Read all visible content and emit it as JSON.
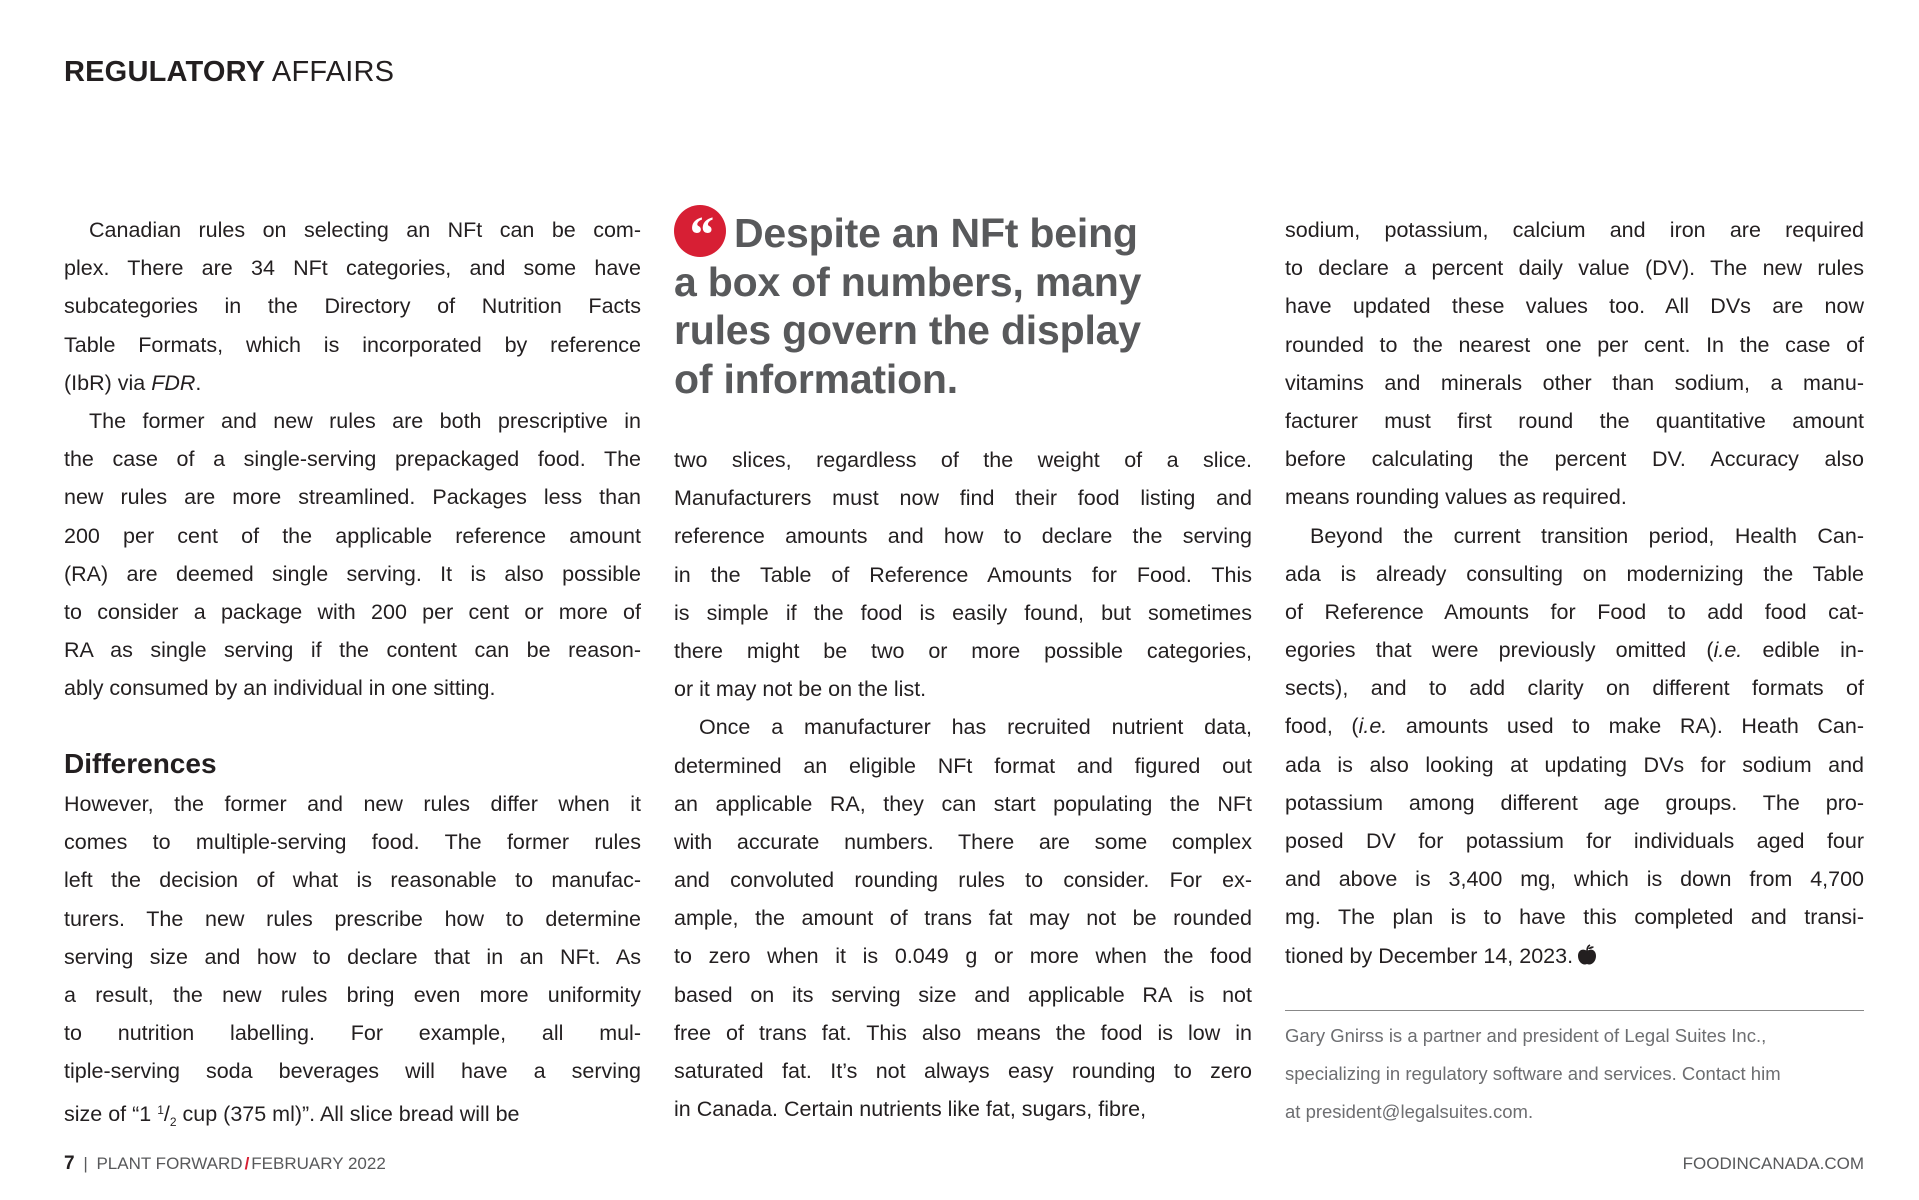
{
  "header": {
    "section_bold": "REGULATORY",
    "section_regular": "AFFAIRS"
  },
  "pull_quote": {
    "icon": "quote-mark-icon",
    "accent_color": "#d71f34",
    "lines": [
      "Despite an NFt being",
      "a box of numbers, many",
      "rules govern the display",
      "of information."
    ]
  },
  "left_column": {
    "block1": [
      [
        "Canadian rules on selecting an NFt can be com-",
        "plex. There are 34 NFt categories, and some have",
        "subcategories in the Directory of Nutrition Facts",
        "Table Formats, which is incorporated by reference",
        [
          {
            "t": "(IbR) via "
          },
          {
            "t": "FDR",
            "s": "i"
          },
          {
            "t": "."
          }
        ]
      ],
      [
        "The former and new rules are both prescriptive in",
        "the case of a single-serving prepackaged food. The",
        "new rules are more streamlined. Packages less than",
        "200 per cent of the applicable reference amount",
        "(RA) are deemed single serving. It is also possible",
        "to consider a package with 200 per cent or more of",
        "RA as single serving if the content can be reason-",
        "ably consumed by an individual in one sitting."
      ]
    ],
    "heading": "Differences",
    "block2": [
      [
        "However, the former and new rules differ when it",
        "comes to multiple-serving food. The former rules",
        "left the decision of what is reasonable to manufac-",
        "turers. The new rules prescribe how to determine",
        "serving size and how to declare that in an NFt. As",
        "a result, the new rules bring even more uniformity",
        "to nutrition labelling. For example, all mul-",
        "tiple-serving soda beverages will have a serving",
        [
          {
            "t": "size of “1 "
          },
          {
            "t": "1",
            "s": "sup"
          },
          {
            "t": "/"
          },
          {
            "t": "2",
            "s": "sub"
          },
          {
            "t": " cup (375 ml)”. All slice bread will be"
          }
        ]
      ]
    ]
  },
  "middle_column": [
    [
      "two slices, regardless of the weight of a slice.",
      "Manufacturers must now find their food listing and",
      "reference amounts and how to declare the serving",
      "in the Table of Reference Amounts for Food. This",
      "is simple if the food is easily found, but sometimes",
      "there might be two or more possible categories,",
      "or it may not be on the list."
    ],
    [
      "Once a manufacturer has recruited nutrient data,",
      "determined an eligible NFt format and figured out",
      "an applicable RA, they can start populating the NFt",
      "with accurate numbers. There are some complex",
      "and convoluted rounding rules to consider. For ex-",
      "ample, the amount of trans fat may not be rounded",
      "to zero when it is 0.049 g or more when the food",
      "based on its serving size and applicable RA is not",
      "free of trans fat. This also means the food is low in",
      "saturated fat. It’s not always easy rounding to zero",
      "in Canada. Certain nutrients like fat, sugars, fibre,"
    ]
  ],
  "right_column": [
    [
      "sodium, potassium, calcium and iron are required",
      "to declare a percent daily value (DV). The new rules",
      "have updated these values too. All DVs are now",
      "rounded to the nearest one per cent. In the case of",
      "vitamins and minerals other than sodium, a manu-",
      "facturer must first round the quantitative amount",
      "before calculating the percent DV. Accuracy also",
      "means rounding values as required."
    ],
    [
      "Beyond the current transition period, Health Can-",
      "ada is already consulting on modernizing the Table",
      "of Reference Amounts for Food to add food cat-",
      [
        {
          "t": "egories that were previously omitted ("
        },
        {
          "t": "i.e.",
          "s": "i"
        },
        {
          "t": " edible in-"
        }
      ],
      "sects), and to add clarity on different formats of",
      [
        {
          "t": "food, ("
        },
        {
          "t": "i.e.",
          "s": "i"
        },
        {
          "t": " amounts used to make RA). Heath Can-"
        }
      ],
      "ada is also looking at updating DVs for sodium and",
      "potassium among different age groups. The pro-",
      "posed DV for potassium for individuals aged four",
      "and above is 3,400 mg, which is down from 4,700",
      "mg. The plan is to have this completed and transi-",
      "tioned by December 14, 2023."
    ]
  ],
  "end_mark_icon": "apple-icon",
  "author_note": [
    "Gary Gnirss is a partner and president of Legal Suites Inc.,",
    "specializing in regulatory software and services. Contact him",
    "at president@legalsuites.com."
  ],
  "footer": {
    "page_number": "7",
    "separator": "|",
    "magazine": "PLANT FORWARD",
    "slash": "/",
    "issue": "FEBRUARY 2022",
    "website": "FOODINCANADA.COM",
    "slash_color": "#d71f34"
  }
}
